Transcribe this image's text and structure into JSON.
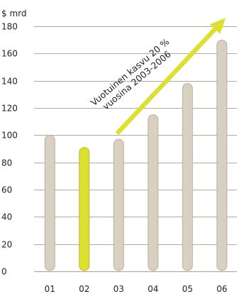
{
  "chart_data": {
    "type": "bar",
    "unit_label": "$ mrd",
    "categories": [
      "01",
      "02",
      "03",
      "04",
      "05",
      "06"
    ],
    "values": [
      100,
      91,
      97,
      115,
      138,
      170
    ],
    "ylim": [
      0,
      190
    ],
    "yticks": [
      0,
      20,
      40,
      60,
      80,
      100,
      120,
      140,
      160,
      180
    ],
    "grid": true,
    "highlight_category": "02",
    "colors": {
      "bar": "#d8d1c2",
      "bar_stroke": "#b8ae9b",
      "highlight": "#dde033",
      "highlight_stroke": "#b9bc1e",
      "grid": "#b5ab9a",
      "arrow": "#dde033"
    },
    "annotation": {
      "line1": "Vuotuinen kasvu 20 %",
      "line2": "vuosina 2003-2006"
    }
  }
}
